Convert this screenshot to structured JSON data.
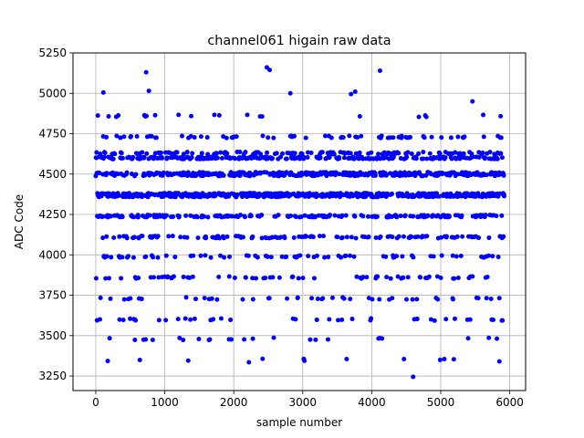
{
  "chart_data": {
    "type": "scatter",
    "title": "channel061 higain raw data",
    "xlabel": "sample number",
    "ylabel": "ADC Code",
    "xlim": [
      -330,
      6230
    ],
    "ylim": [
      3160,
      5250
    ],
    "xticks": [
      0,
      1000,
      2000,
      3000,
      4000,
      5000,
      6000
    ],
    "yticks": [
      3250,
      3500,
      3750,
      4000,
      4250,
      4500,
      4750,
      5000,
      5250
    ],
    "grid": true,
    "marker_color": "#0000ff",
    "sample_count": 5920,
    "level_bands": [
      {
        "adc": 4500,
        "relative_density": 18
      },
      {
        "adc": 4370,
        "relative_density": 24
      },
      {
        "adc": 4600,
        "relative_density": 11
      },
      {
        "adc": 4630,
        "relative_density": 5
      },
      {
        "adc": 4240,
        "relative_density": 9
      },
      {
        "adc": 4110,
        "relative_density": 6
      },
      {
        "adc": 3990,
        "relative_density": 4
      },
      {
        "adc": 4730,
        "relative_density": 3
      },
      {
        "adc": 3860,
        "relative_density": 3
      },
      {
        "adc": 3730,
        "relative_density": 2
      },
      {
        "adc": 3600,
        "relative_density": 2
      },
      {
        "adc": 3480,
        "relative_density": 1.5
      },
      {
        "adc": 4860,
        "relative_density": 1
      },
      {
        "adc": 3350,
        "relative_density": 0.5
      }
    ],
    "outliers": [
      {
        "x": 110,
        "y": 5005
      },
      {
        "x": 730,
        "y": 5130
      },
      {
        "x": 770,
        "y": 5015
      },
      {
        "x": 2480,
        "y": 5160
      },
      {
        "x": 2520,
        "y": 5145
      },
      {
        "x": 2820,
        "y": 5000
      },
      {
        "x": 3700,
        "y": 4995
      },
      {
        "x": 3760,
        "y": 5010
      },
      {
        "x": 4120,
        "y": 5140
      },
      {
        "x": 5460,
        "y": 4950
      },
      {
        "x": 4600,
        "y": 3245
      },
      {
        "x": 2220,
        "y": 3335
      },
      {
        "x": 1340,
        "y": 3345
      },
      {
        "x": 5850,
        "y": 3340
      }
    ]
  }
}
